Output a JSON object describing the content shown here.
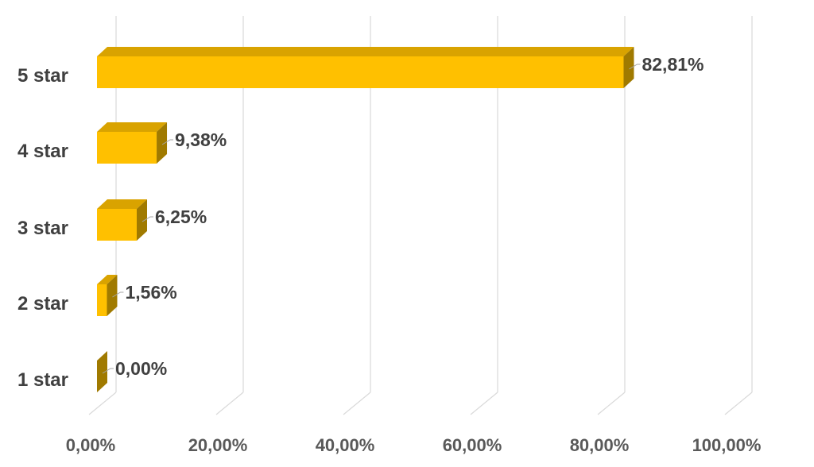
{
  "chart_data": {
    "type": "bar",
    "orientation": "horizontal",
    "style": "3d",
    "categories": [
      "5 star",
      "4 star",
      "3 star",
      "2 star",
      "1 star"
    ],
    "values": [
      82.81,
      9.38,
      6.25,
      1.56,
      0.0
    ],
    "data_labels": [
      "82,81%",
      "9,38%",
      "6,25%",
      "1,56%",
      "0,00%"
    ],
    "xlim": [
      0,
      100
    ],
    "xticks": [
      0,
      20,
      40,
      60,
      80,
      100
    ],
    "xtick_labels": [
      "0,00%",
      "20,00%",
      "40,00%",
      "60,00%",
      "80,00%",
      "100,00%"
    ],
    "title": "",
    "xlabel": "",
    "ylabel": "",
    "grid": true,
    "legend": "none",
    "colors": {
      "bar_front": "#FFC000",
      "bar_top": "#D9A300",
      "bar_side": "#A07A00",
      "gridline": "#D9D9D9"
    }
  }
}
